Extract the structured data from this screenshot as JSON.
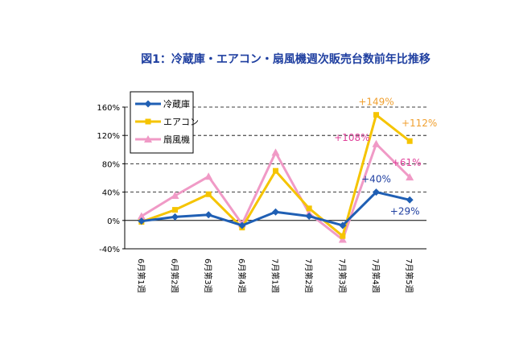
{
  "chart_data": {
    "type": "line",
    "title": "図1：冷蔵庫・エアコン・扇風機週次販売台数前年比推移",
    "categories": [
      "6月第1週",
      "6月第2週",
      "6月第3週",
      "6月第4週",
      "7月第1週",
      "7月第2週",
      "7月第3週",
      "7月第4週",
      "7月第5週"
    ],
    "ylim": [
      -40,
      160
    ],
    "yticks": [
      -40,
      0,
      40,
      80,
      120,
      160
    ],
    "ytick_labels": [
      "-40%",
      "0%",
      "40%",
      "80%",
      "120%",
      "160%"
    ],
    "grid": "horizontal-dashed",
    "legend": "top-left",
    "series": [
      {
        "name": "冷蔵庫",
        "color": "#1f5fb4",
        "marker": "diamond",
        "values": [
          -1,
          5,
          8,
          -7,
          12,
          6,
          -7,
          40,
          29
        ]
      },
      {
        "name": "エアコン",
        "color": "#f5c400",
        "marker": "square",
        "values": [
          -2,
          15,
          37,
          -10,
          70,
          17,
          -22,
          149,
          112
        ]
      },
      {
        "name": "扇風機",
        "color": "#f09ac6",
        "marker": "triangle",
        "values": [
          6,
          35,
          62,
          -5,
          96,
          10,
          -27,
          108,
          61
        ]
      }
    ],
    "annotations": [
      {
        "text": "+149%",
        "color": "#f0a030",
        "series": 1,
        "index": 7
      },
      {
        "text": "+112%",
        "color": "#f0a030",
        "series": 1,
        "index": 8
      },
      {
        "text": "+108%",
        "color": "#e0409a",
        "series": 2,
        "index": 7
      },
      {
        "text": "+61%",
        "color": "#e0409a",
        "series": 2,
        "index": 8
      },
      {
        "text": "+40%",
        "color": "#1f3fa0",
        "series": 0,
        "index": 7
      },
      {
        "text": "+29%",
        "color": "#1f3fa0",
        "series": 0,
        "index": 8
      }
    ],
    "title_color": "#1f3fa0"
  }
}
